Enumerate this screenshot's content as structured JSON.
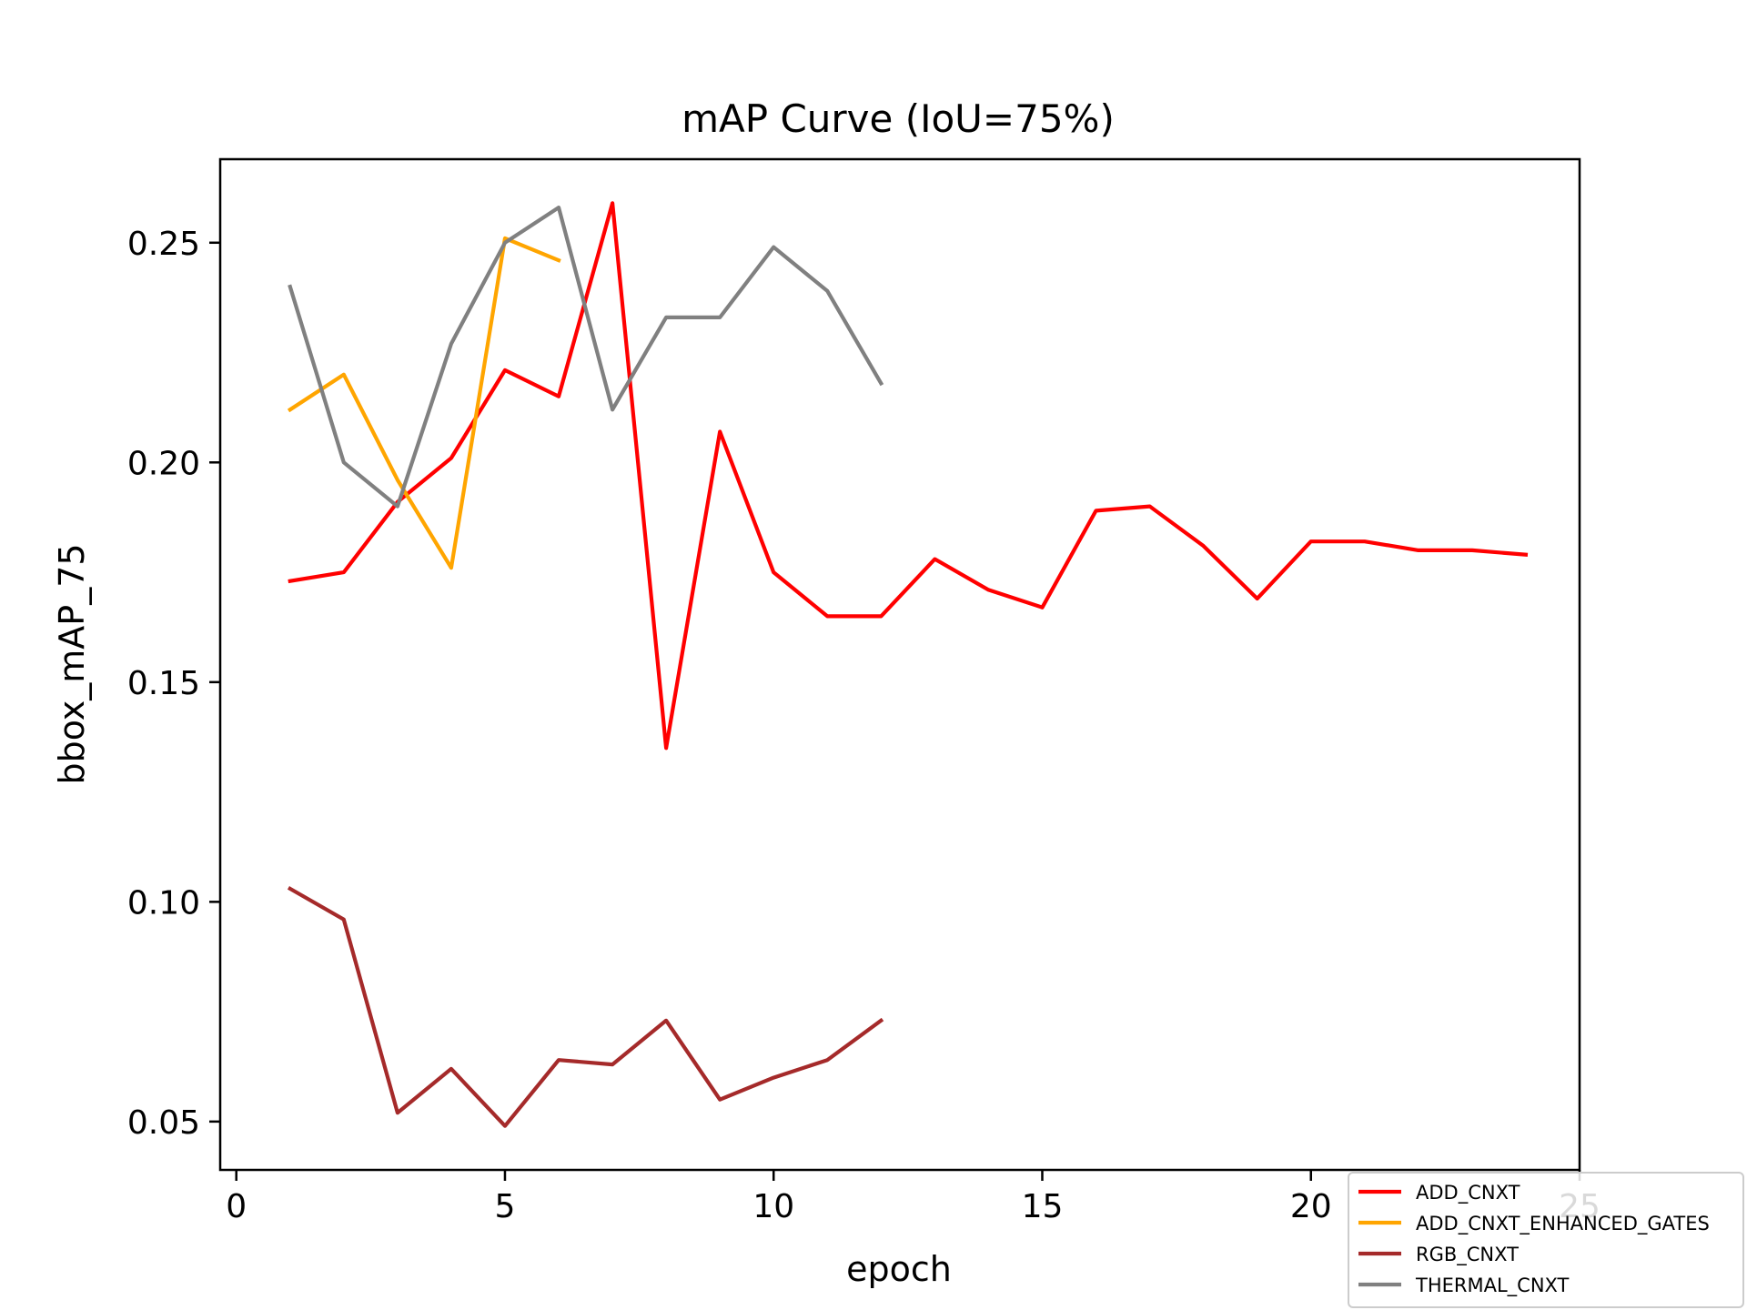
{
  "chart_data": {
    "type": "line",
    "title": "mAP Curve (IoU=75%)",
    "xlabel": "epoch",
    "ylabel": "bbox_mAP_75",
    "xlim": [
      -0.3,
      25
    ],
    "ylim": [
      0.039,
      0.269
    ],
    "x_ticks": [
      0,
      5,
      10,
      15,
      20,
      25
    ],
    "y_ticks": [
      0.05,
      0.1,
      0.15,
      0.2,
      0.25
    ],
    "x_tick_labels": [
      "0",
      "5",
      "10",
      "15",
      "20",
      "25"
    ],
    "y_tick_labels": [
      "0.05",
      "0.10",
      "0.15",
      "0.20",
      "0.25"
    ],
    "grid": false,
    "legend_position": "lower-right",
    "series": [
      {
        "name": "ADD_CNXT",
        "color": "#ff0000",
        "x": [
          1,
          2,
          3,
          4,
          5,
          6,
          7,
          8,
          9,
          10,
          11,
          12,
          13,
          14,
          15,
          16,
          17,
          18,
          19,
          20,
          21,
          22,
          23,
          24
        ],
        "y": [
          0.173,
          0.175,
          0.191,
          0.201,
          0.221,
          0.215,
          0.259,
          0.135,
          0.207,
          0.175,
          0.165,
          0.165,
          0.178,
          0.171,
          0.167,
          0.189,
          0.19,
          0.181,
          0.169,
          0.182,
          0.182,
          0.18,
          0.18,
          0.179
        ]
      },
      {
        "name": "ADD_CNXT_ENHANCED_GATES",
        "color": "#ffa500",
        "x": [
          1,
          2,
          3,
          4,
          5,
          6
        ],
        "y": [
          0.212,
          0.22,
          0.196,
          0.176,
          0.251,
          0.246
        ]
      },
      {
        "name": "RGB_CNXT",
        "color": "#a52a2a",
        "x": [
          1,
          2,
          3,
          4,
          5,
          6,
          7,
          8,
          9,
          10,
          11,
          12
        ],
        "y": [
          0.103,
          0.096,
          0.052,
          0.062,
          0.049,
          0.064,
          0.063,
          0.073,
          0.055,
          0.06,
          0.064,
          0.073
        ]
      },
      {
        "name": "THERMAL_CNXT",
        "color": "#808080",
        "x": [
          1,
          2,
          3,
          4,
          5,
          6,
          7,
          8,
          9,
          10,
          11,
          12
        ],
        "y": [
          0.24,
          0.2,
          0.19,
          0.227,
          0.25,
          0.258,
          0.212,
          0.233,
          0.233,
          0.249,
          0.239,
          0.218
        ]
      }
    ]
  }
}
